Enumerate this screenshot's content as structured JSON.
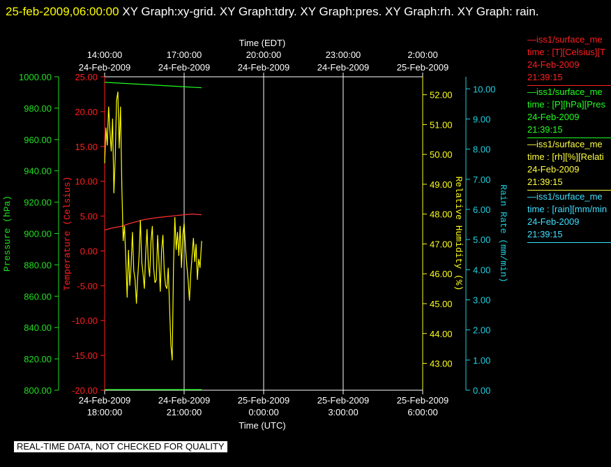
{
  "header": {
    "timestamp": "25-feb-2009,06:00:00",
    "titles": "XY Graph:xy-grid.  XY Graph:tdry.  XY Graph:pres.  XY Graph:rh.  XY Graph: rain."
  },
  "legend": [
    {
      "line": "—iss1/surface_me",
      "field": "time : [T][Celsius][T",
      "date": "24-Feb-2009",
      "time": "21:39:15",
      "color": "#ff2020"
    },
    {
      "line": "—iss1/surface_me",
      "field": "time : [P][hPa][Pres",
      "date": "24-Feb-2009",
      "time": "21:39:15",
      "color": "#20ff20"
    },
    {
      "line": "—iss1/surface_me",
      "field": "time : [rh][%][Relati",
      "date": "24-Feb-2009",
      "time": "21:39:15",
      "color": "#ffff40"
    },
    {
      "line": "—iss1/surface_me",
      "field": "time : [rain][mm/min",
      "date": "24-Feb-2009",
      "time": "21:39:15",
      "color": "#40e0ff"
    }
  ],
  "quality_label": "REAL-TIME DATA, NOT CHECKED FOR QUALITY",
  "chart_data": {
    "type": "line",
    "top_axis": {
      "title": "Time (EDT)",
      "ticks": [
        {
          "h": 0,
          "time": "14:00:00",
          "date": "24-Feb-2009"
        },
        {
          "h": 3,
          "time": "17:00:00",
          "date": "24-Feb-2009"
        },
        {
          "h": 6,
          "time": "20:00:00",
          "date": "24-Feb-2009"
        },
        {
          "h": 9,
          "time": "23:00:00",
          "date": "24-Feb-2009"
        },
        {
          "h": 12,
          "time": "2:00:00",
          "date": "25-Feb-2009"
        }
      ]
    },
    "bottom_axis": {
      "title": "Time (UTC)",
      "range_hours_since_18utc": [
        0,
        12
      ],
      "ticks": [
        {
          "h": 0,
          "date": "24-Feb-2009",
          "time": "18:00:00"
        },
        {
          "h": 3,
          "date": "24-Feb-2009",
          "time": "21:00:00"
        },
        {
          "h": 6,
          "date": "25-Feb-2009",
          "time": "0:00:00"
        },
        {
          "h": 9,
          "date": "25-Feb-2009",
          "time": "3:00:00"
        },
        {
          "h": 12,
          "date": "25-Feb-2009",
          "time": "6:00:00"
        }
      ]
    },
    "axes": {
      "pressure": {
        "label": "Pressure (hPa)",
        "color": "#20e020",
        "range": [
          800,
          1000
        ],
        "ticks": [
          "800.00",
          "820.00",
          "840.00",
          "860.00",
          "880.00",
          "900.00",
          "920.00",
          "940.00",
          "960.00",
          "980.00",
          "1000.00"
        ]
      },
      "temperature": {
        "label": "Temperature (Celsius)",
        "color": "#ff2020",
        "range": [
          -20,
          25
        ],
        "ticks": [
          "-20.00",
          "-15.00",
          "-10.00",
          "-5.00",
          "0.00",
          "5.00",
          "10.00",
          "15.00",
          "20.00",
          "25.00"
        ]
      },
      "rh": {
        "label": "Relative Humidity (%)",
        "color": "#ffff20",
        "range": [
          42.1,
          52.6
        ],
        "ticks": [
          "43.00",
          "44.00",
          "45.00",
          "46.00",
          "47.00",
          "48.00",
          "49.00",
          "50.00",
          "51.00",
          "52.00"
        ]
      },
      "rain": {
        "label": "Rain Rate (mm/min)",
        "color": "#20d0e0",
        "range": [
          0,
          10.4
        ],
        "ticks": [
          "0.00",
          "1.00",
          "2.00",
          "3.00",
          "4.00",
          "5.00",
          "6.00",
          "7.00",
          "8.00",
          "9.00",
          "10.00"
        ]
      }
    },
    "series": [
      {
        "name": "tdry",
        "axis": "temperature",
        "color": "#ff3030",
        "x": [
          0,
          0.3,
          0.6,
          1.0,
          1.5,
          2.0,
          2.5,
          3.0,
          3.3,
          3.66
        ],
        "y": [
          3.0,
          3.3,
          3.5,
          4.0,
          4.5,
          4.8,
          5.0,
          5.2,
          5.3,
          5.2
        ]
      },
      {
        "name": "pres",
        "axis": "pressure",
        "color": "#20ff20",
        "x": [
          0,
          3.66
        ],
        "y": [
          996.5,
          993.0
        ]
      },
      {
        "name": "rh",
        "axis": "rain",
        "color": "#20ff20",
        "x": [
          0,
          3.66
        ],
        "y": [
          0.02,
          0.02
        ]
      },
      {
        "name": "rh",
        "axis": "rh",
        "color": "#ffff00",
        "x": [
          0,
          0.05,
          0.1,
          0.15,
          0.2,
          0.25,
          0.3,
          0.35,
          0.4,
          0.45,
          0.5,
          0.55,
          0.6,
          0.65,
          0.7,
          0.75,
          0.8,
          0.85,
          0.9,
          0.95,
          1.0,
          1.05,
          1.1,
          1.15,
          1.2,
          1.25,
          1.3,
          1.35,
          1.4,
          1.45,
          1.5,
          1.55,
          1.6,
          1.65,
          1.7,
          1.75,
          1.8,
          1.85,
          1.9,
          1.95,
          2.0,
          2.05,
          2.1,
          2.15,
          2.2,
          2.25,
          2.3,
          2.35,
          2.4,
          2.45,
          2.5,
          2.55,
          2.6,
          2.65,
          2.7,
          2.75,
          2.8,
          2.85,
          2.9,
          2.95,
          3.0,
          3.05,
          3.1,
          3.15,
          3.2,
          3.25,
          3.3,
          3.35,
          3.4,
          3.45,
          3.5,
          3.55,
          3.6,
          3.66
        ],
        "y": [
          49.7,
          50.9,
          50.3,
          51.6,
          50.8,
          50.1,
          51.2,
          48.7,
          49.9,
          51.8,
          52.1,
          50.2,
          51.6,
          48.9,
          47.1,
          47.6,
          46.5,
          45.2,
          46.8,
          45.6,
          46.3,
          47.4,
          46.1,
          45.8,
          45.0,
          45.9,
          46.6,
          47.8,
          46.4,
          46.0,
          45.5,
          46.7,
          47.5,
          46.3,
          45.9,
          47.1,
          47.6,
          46.2,
          45.7,
          45.8,
          47.3,
          46.4,
          45.4,
          46.8,
          47.3,
          46.1,
          45.6,
          45.5,
          46.2,
          44.9,
          43.6,
          43.1,
          46.3,
          47.9,
          46.8,
          47.4,
          46.6,
          47.6,
          46.2,
          47.3,
          47.7,
          46.9,
          46.3,
          45.8,
          45.1,
          46.0,
          46.6,
          47.2,
          46.4,
          47.0,
          45.8,
          46.5,
          46.2,
          47.1
        ]
      }
    ],
    "grid": true
  }
}
